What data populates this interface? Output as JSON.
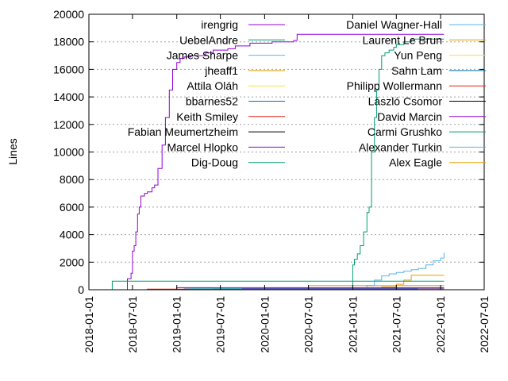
{
  "chart_data": {
    "type": "line",
    "ylabel": "Lines",
    "xlabel": "",
    "title": "",
    "ylim": [
      0,
      20000
    ],
    "y_ticks": [
      "0",
      "2000",
      "4000",
      "6000",
      "8000",
      "10000",
      "12000",
      "14000",
      "16000",
      "18000",
      "20000"
    ],
    "x_ticks": [
      "2018-01-01",
      "2018-07-01",
      "2019-01-01",
      "2019-07-01",
      "2020-01-01",
      "2020-07-01",
      "2021-01-01",
      "2021-07-01",
      "2022-01-01",
      "2022-07-01"
    ],
    "grid": "horizontal dotted",
    "legend": "inside top, two columns",
    "series": [
      {
        "name": "irengrig",
        "color": "#9400d3",
        "step": true,
        "x": [
          "2018-05-15",
          "2018-06-10",
          "2018-06-25",
          "2018-07-01",
          "2018-07-08",
          "2018-07-15",
          "2018-07-22",
          "2018-07-29",
          "2018-08-05",
          "2018-08-20",
          "2018-09-01",
          "2018-09-20",
          "2018-10-01",
          "2018-10-15",
          "2018-11-01",
          "2018-11-15",
          "2018-12-01",
          "2018-12-15",
          "2019-01-01",
          "2019-01-15",
          "2019-02-01",
          "2019-03-01",
          "2019-05-01",
          "2019-06-01",
          "2019-08-01",
          "2019-09-01",
          "2019-11-01",
          "2020-02-01",
          "2020-04-01",
          "2020-05-01",
          "2020-05-15",
          "2020-07-01",
          "2021-01-01",
          "2022-01-15"
        ],
        "y": [
          0,
          800,
          1200,
          2800,
          3200,
          4200,
          5500,
          6000,
          6800,
          7000,
          7100,
          7400,
          7600,
          8800,
          10500,
          12500,
          14500,
          16000,
          16500,
          16800,
          16900,
          17000,
          17200,
          17400,
          17500,
          17700,
          17900,
          18000,
          18000,
          18100,
          18550,
          18550,
          18550,
          18550
        ]
      },
      {
        "name": "UebelAndre",
        "color": "#009e73",
        "step": true,
        "x": [
          "2020-11-20",
          "2021-01-01",
          "2021-01-08",
          "2021-01-20",
          "2021-02-01",
          "2021-02-15",
          "2021-03-01",
          "2021-03-10",
          "2021-03-20",
          "2021-04-01",
          "2021-04-10",
          "2021-04-20",
          "2021-05-01",
          "2021-05-15",
          "2021-06-01",
          "2021-06-20",
          "2021-07-01",
          "2021-08-01",
          "2021-09-01",
          "2022-01-15"
        ],
        "y": [
          0,
          1800,
          2200,
          2600,
          3200,
          4200,
          5600,
          6000,
          10000,
          12500,
          14500,
          16000,
          17000,
          17200,
          17400,
          17600,
          17800,
          18000,
          18200,
          18200
        ]
      },
      {
        "name": "James Sharpe",
        "color": "#56b4e9",
        "step": true,
        "x": [
          "2018-04-01",
          "2019-02-01",
          "2021-01-01",
          "2021-03-01",
          "2021-04-01",
          "2021-05-01",
          "2021-06-01",
          "2021-07-01",
          "2021-08-01",
          "2021-09-01",
          "2021-10-01",
          "2021-11-01",
          "2021-12-01",
          "2022-01-01",
          "2022-01-15"
        ],
        "y": [
          0,
          80,
          100,
          300,
          700,
          1000,
          1150,
          1250,
          1350,
          1450,
          1550,
          1800,
          2100,
          2300,
          2700
        ]
      },
      {
        "name": "jheaff1",
        "color": "#e69f00",
        "step": true,
        "x": [
          "2020-06-01",
          "2021-05-01",
          "2021-07-01",
          "2021-08-01",
          "2021-09-01",
          "2022-01-15"
        ],
        "y": [
          0,
          200,
          400,
          700,
          1050,
          1050
        ]
      },
      {
        "name": "Attila Oláh",
        "color": "#f0e442",
        "step": true,
        "x": [
          "2019-06-01",
          "2021-07-01",
          "2022-01-15"
        ],
        "y": [
          0,
          60,
          60
        ]
      },
      {
        "name": "bbarnes52",
        "color": "#0072b2",
        "step": true,
        "x": [
          "2019-04-01",
          "2020-01-01",
          "2022-01-15"
        ],
        "y": [
          0,
          120,
          120
        ]
      },
      {
        "name": "Keith Smiley",
        "color": "#e51e10",
        "step": true,
        "x": [
          "2019-05-01",
          "2021-02-01",
          "2022-01-15"
        ],
        "y": [
          0,
          90,
          90
        ]
      },
      {
        "name": "Fabian Meumertzheim",
        "color": "#000000",
        "step": true,
        "x": [
          "2021-03-01",
          "2021-12-01",
          "2022-01-15"
        ],
        "y": [
          0,
          40,
          40
        ]
      },
      {
        "name": "Marcel Hlopko",
        "color": "#9400d3",
        "step": true,
        "x": [
          "2018-10-01",
          "2019-01-01",
          "2022-01-15"
        ],
        "y": [
          0,
          150,
          150
        ]
      },
      {
        "name": "Dig-Doug",
        "color": "#009e73",
        "step": true,
        "x": [
          "2018-04-01",
          "2018-04-08",
          "2022-01-15"
        ],
        "y": [
          0,
          620,
          620
        ]
      },
      {
        "name": "Daniel Wagner-Hall",
        "color": "#56b4e9",
        "step": true,
        "x": [
          "2018-06-01",
          "2019-06-01",
          "2022-01-15"
        ],
        "y": [
          0,
          100,
          100
        ]
      },
      {
        "name": "Laurent Le Brun",
        "color": "#e69f00",
        "step": true,
        "x": [
          "2020-06-01",
          "2020-07-01",
          "2022-01-15"
        ],
        "y": [
          0,
          300,
          300
        ]
      },
      {
        "name": "Yun Peng",
        "color": "#f0e442",
        "step": true,
        "x": [
          "2020-01-01",
          "2021-06-01",
          "2022-01-15"
        ],
        "y": [
          0,
          50,
          50
        ]
      },
      {
        "name": "Sahn Lam",
        "color": "#0072b2",
        "step": true,
        "x": [
          "2020-01-01",
          "2021-09-01",
          "2022-01-15"
        ],
        "y": [
          0,
          70,
          70
        ]
      },
      {
        "name": "Philipp Wollermann",
        "color": "#e51e10",
        "step": true,
        "x": [
          "2018-06-01",
          "2018-09-01",
          "2022-01-15"
        ],
        "y": [
          0,
          40,
          40
        ]
      },
      {
        "name": "László Csomor",
        "color": "#000000",
        "step": true,
        "x": [
          "2019-06-01",
          "2020-03-01",
          "2022-01-15"
        ],
        "y": [
          0,
          30,
          30
        ]
      },
      {
        "name": "David Marcin",
        "color": "#9400d3",
        "step": true,
        "x": [
          "2019-09-01",
          "2019-10-01",
          "2022-01-15"
        ],
        "y": [
          0,
          80,
          80
        ]
      },
      {
        "name": "Carmi Grushko",
        "color": "#009e73",
        "step": true,
        "x": [
          "2018-08-01",
          "2019-03-01",
          "2022-01-15"
        ],
        "y": [
          0,
          50,
          50
        ]
      },
      {
        "name": "Alexander Turkin",
        "color": "#56b4e9",
        "step": true,
        "x": [
          "2021-08-01",
          "2021-10-01",
          "2022-01-15"
        ],
        "y": [
          0,
          60,
          60
        ]
      },
      {
        "name": "Alex Eagle",
        "color": "#e69f00",
        "step": true,
        "x": [
          "2021-09-01",
          "2021-10-01",
          "2022-01-15"
        ],
        "y": [
          0,
          40,
          40
        ]
      }
    ]
  }
}
